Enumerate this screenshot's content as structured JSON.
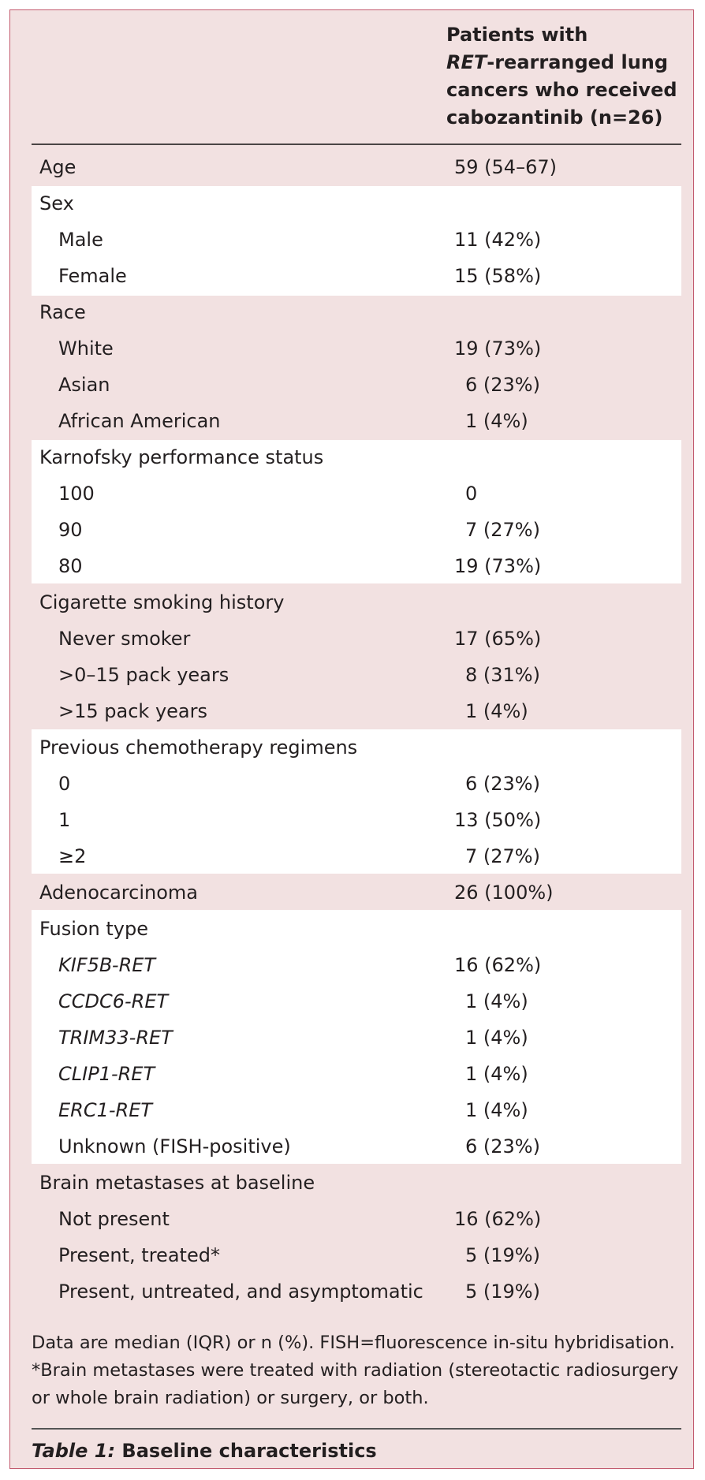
{
  "header": {
    "line1": "Patients with",
    "line2_italic": "RET",
    "line2_rest": "-rearranged lung",
    "line3": "cancers who received",
    "line4": "cabozantinib (n=26)"
  },
  "rows": [
    {
      "label": "Age",
      "value": "59 (54–67)"
    },
    {
      "label": "Sex",
      "value": ""
    },
    {
      "label": "Male",
      "value": "11 (42%)"
    },
    {
      "label": "Female",
      "value": "15 (58%)"
    },
    {
      "label": "Race",
      "value": ""
    },
    {
      "label": "White",
      "value": "19 (73%)"
    },
    {
      "label": "Asian",
      "value": "6 (23%)"
    },
    {
      "label": "African American",
      "value": "1 (4%)"
    },
    {
      "label": "Karnofsky performance status",
      "value": ""
    },
    {
      "label": "100",
      "value": "0"
    },
    {
      "label": "90",
      "value": "7 (27%)"
    },
    {
      "label": "80",
      "value": "19 (73%)"
    },
    {
      "label": "Cigarette smoking history",
      "value": ""
    },
    {
      "label": "Never smoker",
      "value": "17 (65%)"
    },
    {
      "label": ">0–15 pack years",
      "value": "8 (31%)"
    },
    {
      "label": ">15 pack years",
      "value": "1 (4%)"
    },
    {
      "label": "Previous chemotherapy regimens",
      "value": ""
    },
    {
      "label": "0",
      "value": "6 (23%)"
    },
    {
      "label": "1",
      "value": "13 (50%)"
    },
    {
      "label": "≥2",
      "value": "7 (27%)"
    },
    {
      "label": "Adenocarcinoma",
      "value": "26 (100%)"
    },
    {
      "label": "Fusion type",
      "value": ""
    },
    {
      "label": "KIF5B-RET",
      "value": "16 (62%)"
    },
    {
      "label": "CCDC6-RET",
      "value": "1 (4%)"
    },
    {
      "label": "TRIM33-RET",
      "value": "1 (4%)"
    },
    {
      "label": "CLIP1-RET",
      "value": "1 (4%)"
    },
    {
      "label": "ERC1-RET",
      "value": "1 (4%)"
    },
    {
      "label": "Unknown (FISH-positive)",
      "value": "6 (23%)"
    },
    {
      "label": "Brain metastases at baseline",
      "value": ""
    },
    {
      "label": "Not present",
      "value": "16 (62%)"
    },
    {
      "label": "Present, treated*",
      "value": "5 (19%)"
    },
    {
      "label": "Present, untreated, and asymptomatic",
      "value": "5 (19%)"
    }
  ],
  "footnotes": {
    "line1": "Data are median (IQR) or n (%). FISH=fluorescence in-situ hybridisation.",
    "line2": "*Brain metastases were treated with radiation (stereotactic radiosurgery or whole brain radiation) or surgery, or both."
  },
  "caption": {
    "label": "Table 1:",
    "title": " Baseline characteristics"
  }
}
